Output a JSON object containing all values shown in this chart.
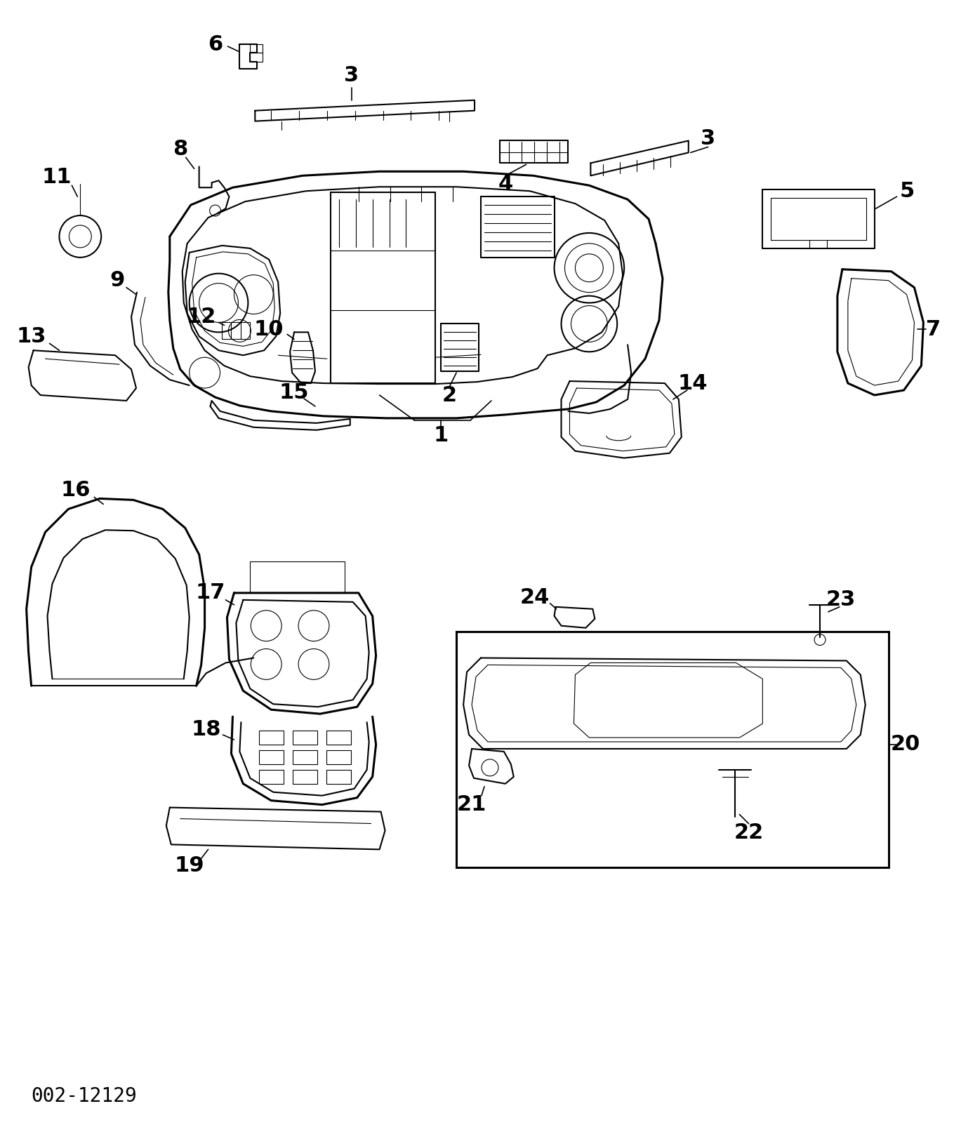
{
  "background_color": "#ffffff",
  "diagram_id": "002-12129",
  "figsize": [
    13.69,
    16.23
  ],
  "dpi": 100
}
